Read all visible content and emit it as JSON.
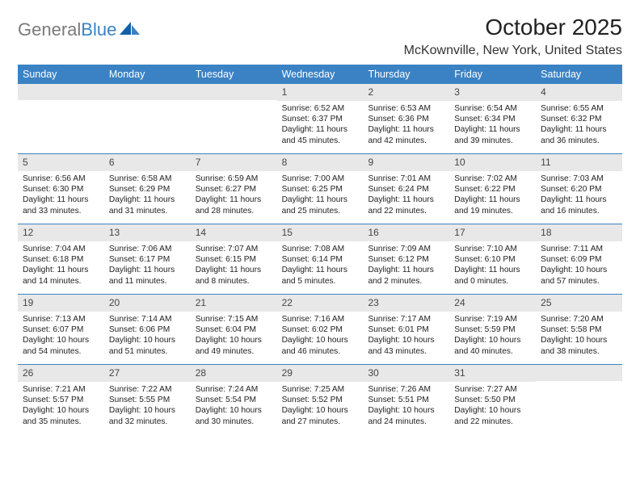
{
  "logo": {
    "text_gray": "General",
    "text_blue": "Blue"
  },
  "title": "October 2025",
  "location": "McKownville, New York, United States",
  "weekdays": [
    "Sunday",
    "Monday",
    "Tuesday",
    "Wednesday",
    "Thursday",
    "Friday",
    "Saturday"
  ],
  "colors": {
    "header_bg": "#3b82c4",
    "daynum_bg": "#e8e8e8",
    "week_border": "#3b82c4"
  },
  "weeks": [
    [
      {
        "n": "",
        "sr": "",
        "ss": "",
        "dl": ""
      },
      {
        "n": "",
        "sr": "",
        "ss": "",
        "dl": ""
      },
      {
        "n": "",
        "sr": "",
        "ss": "",
        "dl": ""
      },
      {
        "n": "1",
        "sr": "Sunrise: 6:52 AM",
        "ss": "Sunset: 6:37 PM",
        "dl": "Daylight: 11 hours and 45 minutes."
      },
      {
        "n": "2",
        "sr": "Sunrise: 6:53 AM",
        "ss": "Sunset: 6:36 PM",
        "dl": "Daylight: 11 hours and 42 minutes."
      },
      {
        "n": "3",
        "sr": "Sunrise: 6:54 AM",
        "ss": "Sunset: 6:34 PM",
        "dl": "Daylight: 11 hours and 39 minutes."
      },
      {
        "n": "4",
        "sr": "Sunrise: 6:55 AM",
        "ss": "Sunset: 6:32 PM",
        "dl": "Daylight: 11 hours and 36 minutes."
      }
    ],
    [
      {
        "n": "5",
        "sr": "Sunrise: 6:56 AM",
        "ss": "Sunset: 6:30 PM",
        "dl": "Daylight: 11 hours and 33 minutes."
      },
      {
        "n": "6",
        "sr": "Sunrise: 6:58 AM",
        "ss": "Sunset: 6:29 PM",
        "dl": "Daylight: 11 hours and 31 minutes."
      },
      {
        "n": "7",
        "sr": "Sunrise: 6:59 AM",
        "ss": "Sunset: 6:27 PM",
        "dl": "Daylight: 11 hours and 28 minutes."
      },
      {
        "n": "8",
        "sr": "Sunrise: 7:00 AM",
        "ss": "Sunset: 6:25 PM",
        "dl": "Daylight: 11 hours and 25 minutes."
      },
      {
        "n": "9",
        "sr": "Sunrise: 7:01 AM",
        "ss": "Sunset: 6:24 PM",
        "dl": "Daylight: 11 hours and 22 minutes."
      },
      {
        "n": "10",
        "sr": "Sunrise: 7:02 AM",
        "ss": "Sunset: 6:22 PM",
        "dl": "Daylight: 11 hours and 19 minutes."
      },
      {
        "n": "11",
        "sr": "Sunrise: 7:03 AM",
        "ss": "Sunset: 6:20 PM",
        "dl": "Daylight: 11 hours and 16 minutes."
      }
    ],
    [
      {
        "n": "12",
        "sr": "Sunrise: 7:04 AM",
        "ss": "Sunset: 6:18 PM",
        "dl": "Daylight: 11 hours and 14 minutes."
      },
      {
        "n": "13",
        "sr": "Sunrise: 7:06 AM",
        "ss": "Sunset: 6:17 PM",
        "dl": "Daylight: 11 hours and 11 minutes."
      },
      {
        "n": "14",
        "sr": "Sunrise: 7:07 AM",
        "ss": "Sunset: 6:15 PM",
        "dl": "Daylight: 11 hours and 8 minutes."
      },
      {
        "n": "15",
        "sr": "Sunrise: 7:08 AM",
        "ss": "Sunset: 6:14 PM",
        "dl": "Daylight: 11 hours and 5 minutes."
      },
      {
        "n": "16",
        "sr": "Sunrise: 7:09 AM",
        "ss": "Sunset: 6:12 PM",
        "dl": "Daylight: 11 hours and 2 minutes."
      },
      {
        "n": "17",
        "sr": "Sunrise: 7:10 AM",
        "ss": "Sunset: 6:10 PM",
        "dl": "Daylight: 11 hours and 0 minutes."
      },
      {
        "n": "18",
        "sr": "Sunrise: 7:11 AM",
        "ss": "Sunset: 6:09 PM",
        "dl": "Daylight: 10 hours and 57 minutes."
      }
    ],
    [
      {
        "n": "19",
        "sr": "Sunrise: 7:13 AM",
        "ss": "Sunset: 6:07 PM",
        "dl": "Daylight: 10 hours and 54 minutes."
      },
      {
        "n": "20",
        "sr": "Sunrise: 7:14 AM",
        "ss": "Sunset: 6:06 PM",
        "dl": "Daylight: 10 hours and 51 minutes."
      },
      {
        "n": "21",
        "sr": "Sunrise: 7:15 AM",
        "ss": "Sunset: 6:04 PM",
        "dl": "Daylight: 10 hours and 49 minutes."
      },
      {
        "n": "22",
        "sr": "Sunrise: 7:16 AM",
        "ss": "Sunset: 6:02 PM",
        "dl": "Daylight: 10 hours and 46 minutes."
      },
      {
        "n": "23",
        "sr": "Sunrise: 7:17 AM",
        "ss": "Sunset: 6:01 PM",
        "dl": "Daylight: 10 hours and 43 minutes."
      },
      {
        "n": "24",
        "sr": "Sunrise: 7:19 AM",
        "ss": "Sunset: 5:59 PM",
        "dl": "Daylight: 10 hours and 40 minutes."
      },
      {
        "n": "25",
        "sr": "Sunrise: 7:20 AM",
        "ss": "Sunset: 5:58 PM",
        "dl": "Daylight: 10 hours and 38 minutes."
      }
    ],
    [
      {
        "n": "26",
        "sr": "Sunrise: 7:21 AM",
        "ss": "Sunset: 5:57 PM",
        "dl": "Daylight: 10 hours and 35 minutes."
      },
      {
        "n": "27",
        "sr": "Sunrise: 7:22 AM",
        "ss": "Sunset: 5:55 PM",
        "dl": "Daylight: 10 hours and 32 minutes."
      },
      {
        "n": "28",
        "sr": "Sunrise: 7:24 AM",
        "ss": "Sunset: 5:54 PM",
        "dl": "Daylight: 10 hours and 30 minutes."
      },
      {
        "n": "29",
        "sr": "Sunrise: 7:25 AM",
        "ss": "Sunset: 5:52 PM",
        "dl": "Daylight: 10 hours and 27 minutes."
      },
      {
        "n": "30",
        "sr": "Sunrise: 7:26 AM",
        "ss": "Sunset: 5:51 PM",
        "dl": "Daylight: 10 hours and 24 minutes."
      },
      {
        "n": "31",
        "sr": "Sunrise: 7:27 AM",
        "ss": "Sunset: 5:50 PM",
        "dl": "Daylight: 10 hours and 22 minutes."
      },
      {
        "n": "",
        "sr": "",
        "ss": "",
        "dl": ""
      }
    ]
  ]
}
